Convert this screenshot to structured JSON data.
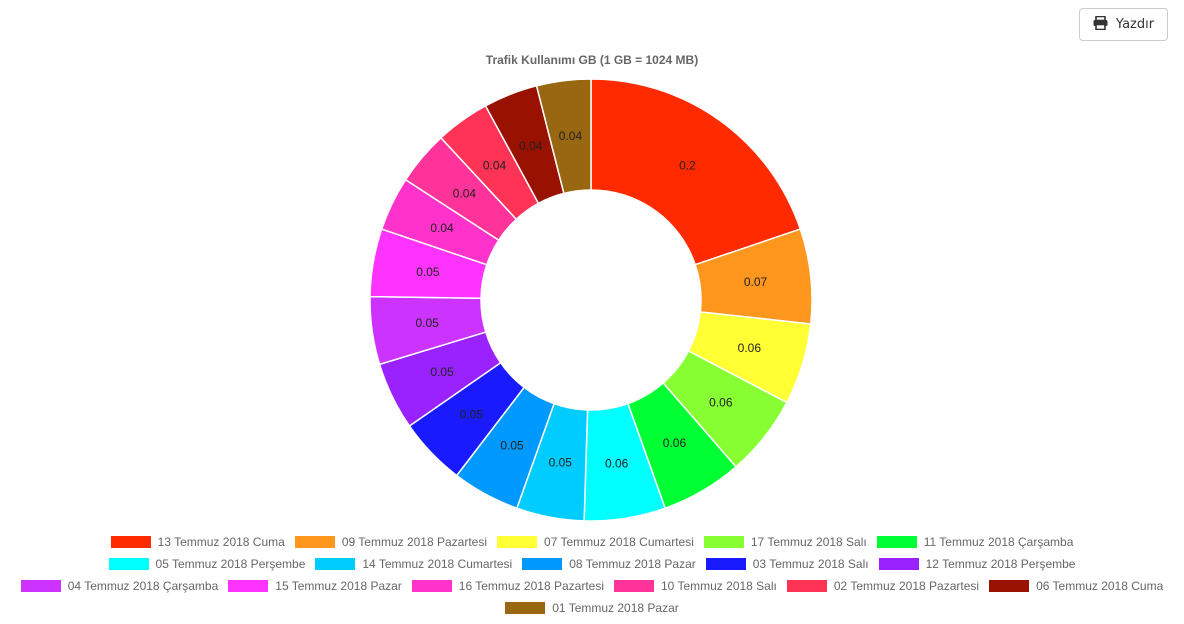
{
  "toolbar": {
    "print_label": "Yazdır",
    "print_icon": "print-icon"
  },
  "chart_data": {
    "type": "pie",
    "variant": "doughnut",
    "title": "Trafik Kullanımı GB (1 GB = 1024 MB)",
    "legend_position": "bottom",
    "categories": [
      "13 Temmuz 2018 Cuma",
      "09 Temmuz 2018 Pazartesi",
      "07 Temmuz 2018 Cumartesi",
      "17 Temmuz 2018 Salı",
      "11 Temmuz 2018 Çarşamba",
      "05 Temmuz 2018 Perşembe",
      "14 Temmuz 2018 Cumartesi",
      "08 Temmuz 2018 Pazar",
      "03 Temmuz 2018 Salı",
      "12 Temmuz 2018 Perşembe",
      "04 Temmuz 2018 Çarşamba",
      "15 Temmuz 2018 Pazar",
      "16 Temmuz 2018 Pazartesi",
      "10 Temmuz 2018 Salı",
      "02 Temmuz 2018 Pazartesi",
      "06 Temmuz 2018 Cuma",
      "01 Temmuz 2018 Pazar"
    ],
    "values": [
      0.2,
      0.07,
      0.06,
      0.06,
      0.06,
      0.06,
      0.05,
      0.05,
      0.05,
      0.05,
      0.05,
      0.05,
      0.04,
      0.04,
      0.04,
      0.04,
      0.04
    ],
    "colors": [
      "#ff2a00",
      "#ff961e",
      "#ffff33",
      "#88ff33",
      "#00ff33",
      "#00ffff",
      "#00ccff",
      "#0099ff",
      "#1a1aff",
      "#9922ff",
      "#cc33ff",
      "#ff33ff",
      "#ff33cc",
      "#ff3399",
      "#ff3355",
      "#991100",
      "#996611"
    ]
  }
}
